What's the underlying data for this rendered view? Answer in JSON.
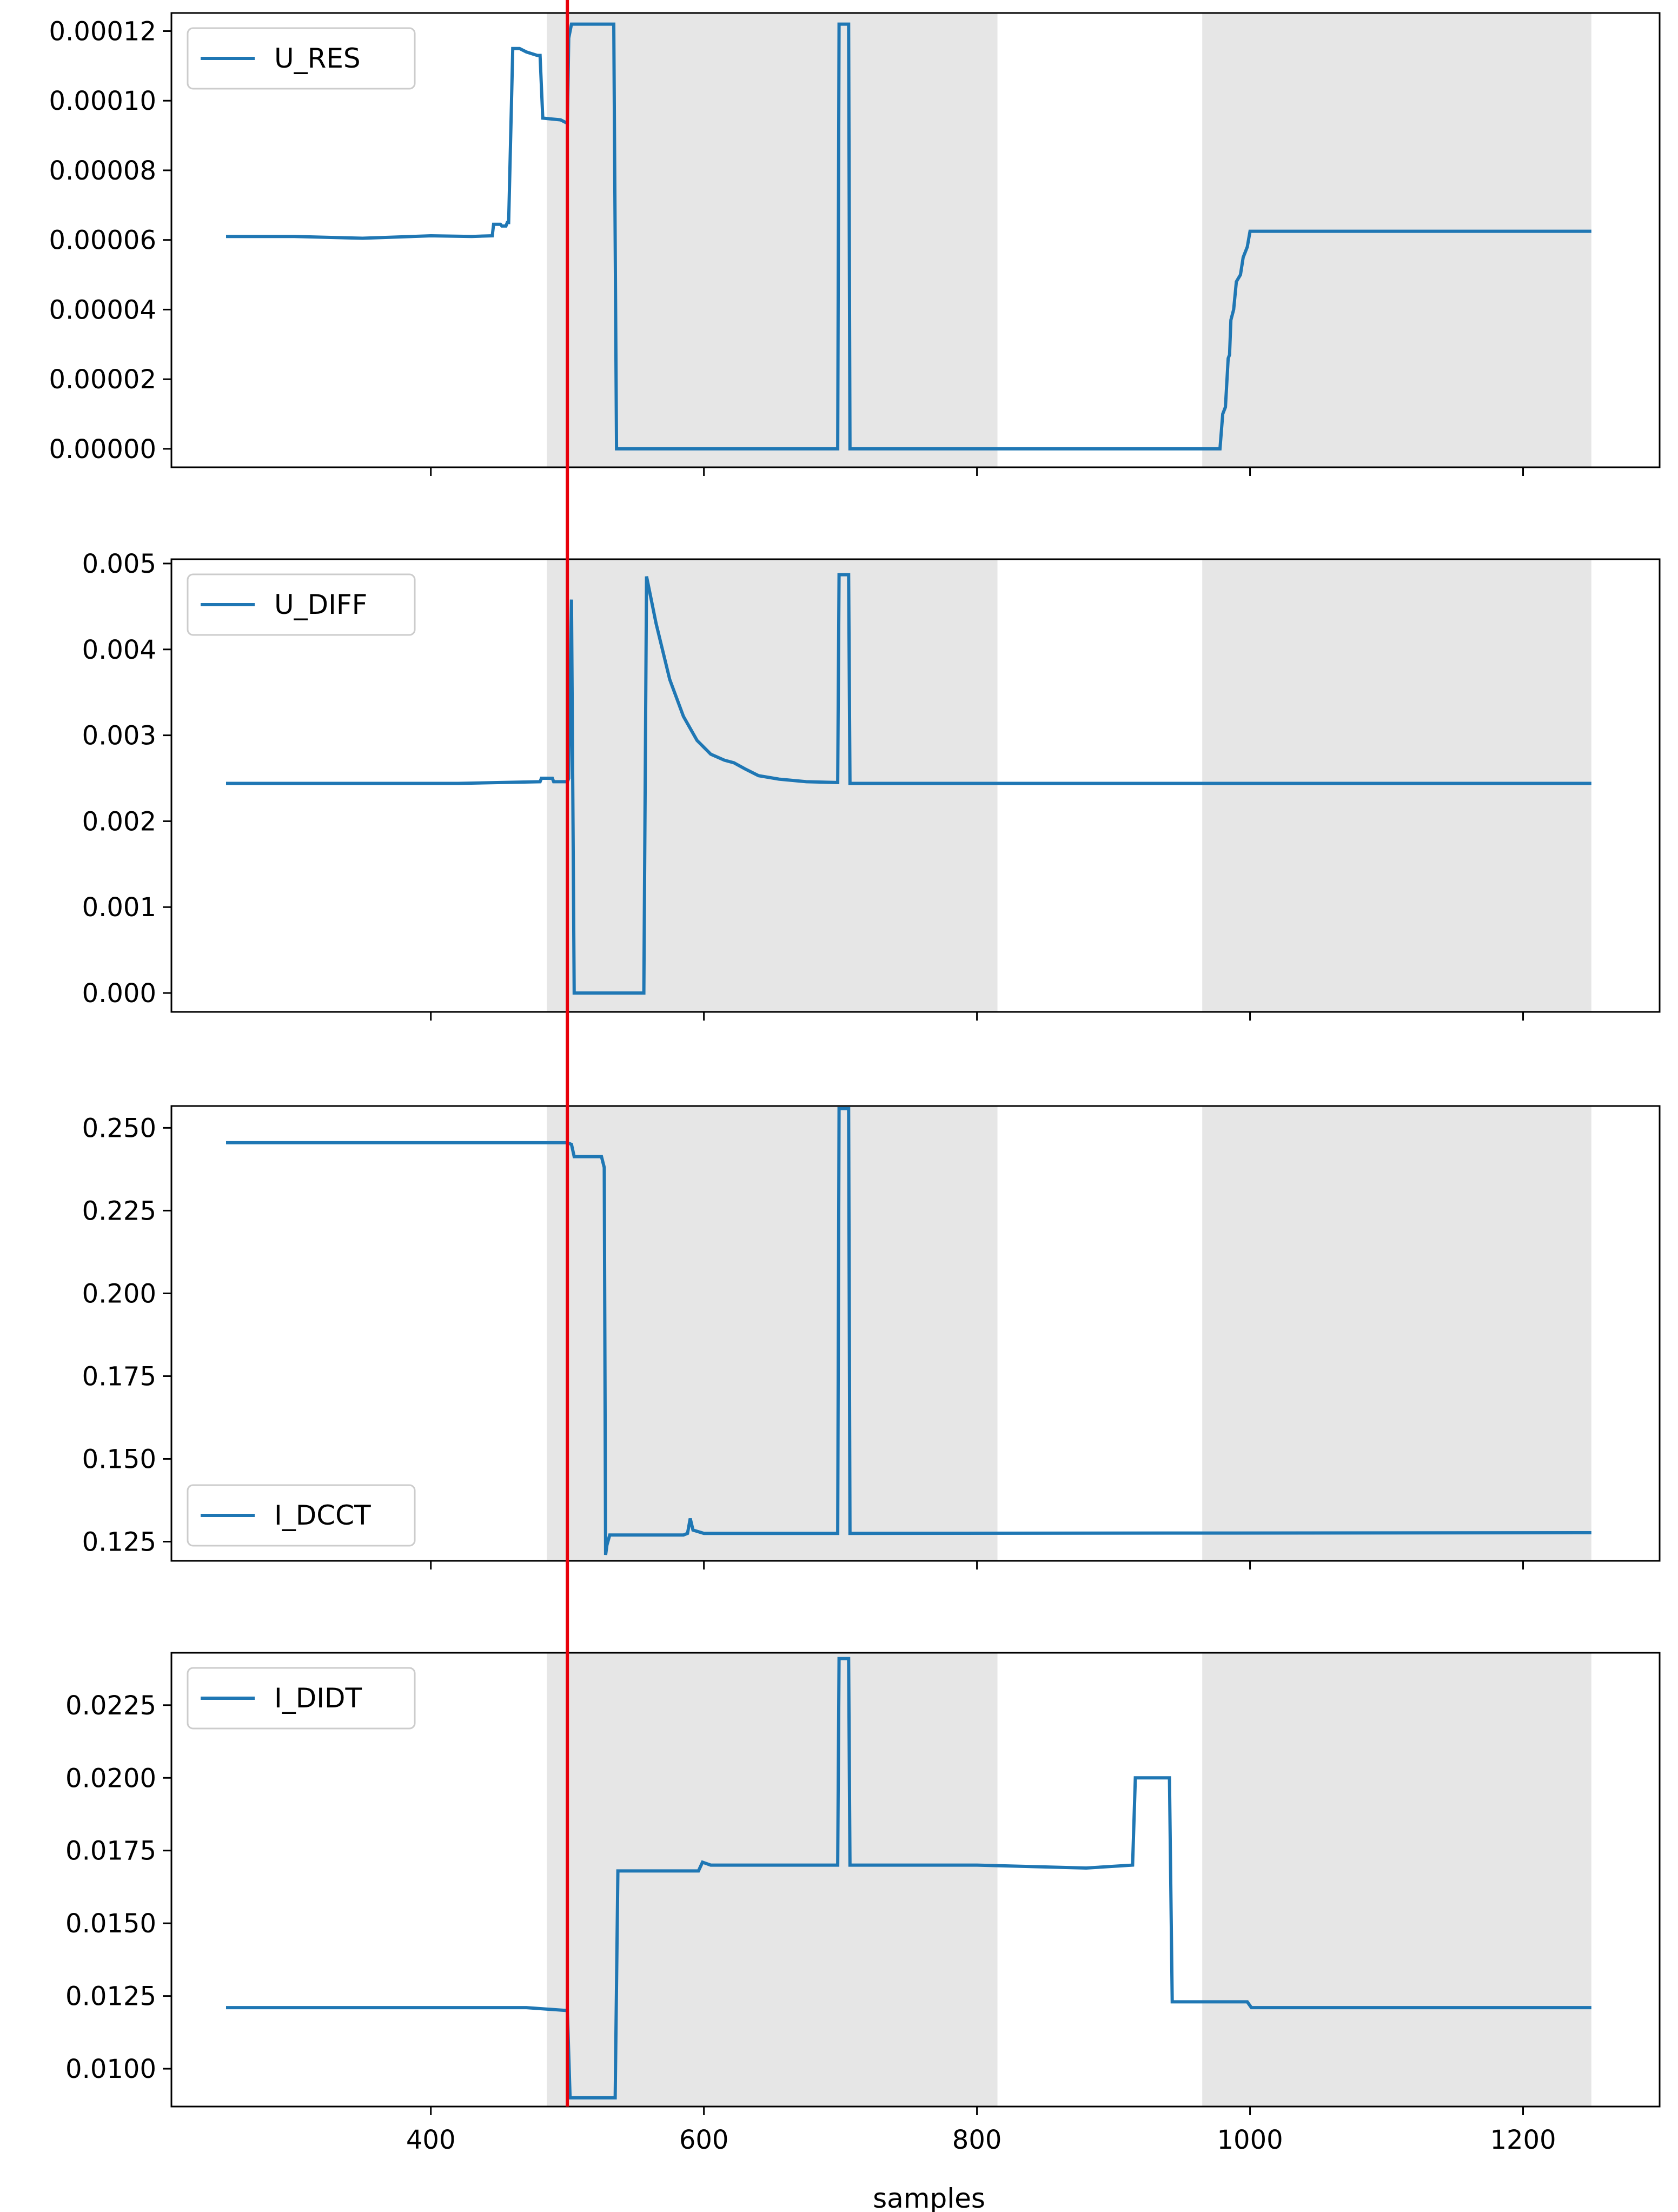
{
  "figure": {
    "xlabel": "samples",
    "shared_x_ticks": [
      400,
      600,
      800,
      1000,
      1200
    ],
    "shaded_regions": [
      [
        485,
        815
      ],
      [
        965,
        1250
      ]
    ],
    "marker_x": 500,
    "colors": {
      "line": "#1f77b4",
      "marker": "#e8000b",
      "shade": "#e6e6e6",
      "axes": "#000000"
    }
  },
  "chart_data": [
    {
      "type": "line",
      "xlim": [
        210,
        1300
      ],
      "ylim": [
        -5.3e-06,
        0.0001252
      ],
      "y_ticks": [
        "0.00000",
        "0.00002",
        "0.00004",
        "0.00006",
        "0.00008",
        "0.00010",
        "0.00012"
      ],
      "y_tick_values": [
        0,
        2e-05,
        4e-05,
        6e-05,
        8e-05,
        0.0001,
        0.00012
      ],
      "legend_loc": "upper left",
      "series": [
        {
          "name": "U_RES",
          "points": [
            [
              250,
              6.1e-05
            ],
            [
              300,
              6.1e-05
            ],
            [
              350,
              6.05e-05
            ],
            [
              400,
              6.12e-05
            ],
            [
              430,
              6.1e-05
            ],
            [
              445,
              6.12e-05
            ],
            [
              446,
              6.45e-05
            ],
            [
              451,
              6.45e-05
            ],
            [
              452,
              6.4e-05
            ],
            [
              455,
              6.4e-05
            ],
            [
              456,
              6.5e-05
            ],
            [
              457,
              6.5e-05
            ],
            [
              460,
              0.000115
            ],
            [
              465,
              0.000115
            ],
            [
              470,
              0.000114
            ],
            [
              478,
              0.000113
            ],
            [
              480,
              0.000113
            ],
            [
              482,
              9.5e-05
            ],
            [
              495,
              9.45e-05
            ],
            [
              500,
              9.35e-05
            ],
            [
              501,
              0.000118
            ],
            [
              503,
              0.000122
            ],
            [
              521,
              0.000122
            ],
            [
              534,
              0.000122
            ],
            [
              536,
              0.0
            ],
            [
              698,
              0.0
            ],
            [
              699,
              0.000122
            ],
            [
              706,
              0.000122
            ],
            [
              707,
              0.0
            ],
            [
              978,
              0.0
            ],
            [
              980,
              1e-05
            ],
            [
              982,
              1.2e-05
            ],
            [
              984,
              2.6e-05
            ],
            [
              985,
              2.7e-05
            ],
            [
              986,
              3.7e-05
            ],
            [
              988,
              4e-05
            ],
            [
              990,
              4.8e-05
            ],
            [
              993,
              5e-05
            ],
            [
              995,
              5.5e-05
            ],
            [
              998,
              5.8e-05
            ],
            [
              1000,
              6.25e-05
            ],
            [
              1250,
              6.25e-05
            ]
          ]
        }
      ]
    },
    {
      "type": "line",
      "xlim": [
        210,
        1300
      ],
      "ylim": [
        -0.00022,
        0.00505
      ],
      "y_ticks": [
        "0.000",
        "0.001",
        "0.002",
        "0.003",
        "0.004",
        "0.005"
      ],
      "y_tick_values": [
        0,
        0.001,
        0.002,
        0.003,
        0.004,
        0.005
      ],
      "legend_loc": "upper left",
      "series": [
        {
          "name": "U_DIFF",
          "points": [
            [
              250,
              0.00244
            ],
            [
              420,
              0.00244
            ],
            [
              480,
              0.00246
            ],
            [
              481,
              0.0025
            ],
            [
              489,
              0.0025
            ],
            [
              490,
              0.00246
            ],
            [
              500,
              0.00246
            ],
            [
              501,
              0.0025
            ],
            [
              503,
              0.00458
            ],
            [
              505,
              0.0
            ],
            [
              556,
              0.0
            ],
            [
              558,
              0.00485
            ],
            [
              565,
              0.0043
            ],
            [
              575,
              0.00365
            ],
            [
              585,
              0.00322
            ],
            [
              595,
              0.00294
            ],
            [
              605,
              0.00278
            ],
            [
              615,
              0.00271
            ],
            [
              622,
              0.00268
            ],
            [
              630,
              0.00261
            ],
            [
              640,
              0.00253
            ],
            [
              655,
              0.00249
            ],
            [
              675,
              0.00246
            ],
            [
              698,
              0.00245
            ],
            [
              699,
              0.00487
            ],
            [
              706,
              0.00487
            ],
            [
              707,
              0.00244
            ],
            [
              1250,
              0.00244
            ]
          ]
        }
      ]
    },
    {
      "type": "line",
      "xlim": [
        210,
        1300
      ],
      "ylim": [
        0.1192,
        0.2566
      ],
      "y_ticks": [
        "0.125",
        "0.150",
        "0.175",
        "0.200",
        "0.225",
        "0.250"
      ],
      "y_tick_values": [
        0.125,
        0.15,
        0.175,
        0.2,
        0.225,
        0.25
      ],
      "legend_loc": "lower left",
      "series": [
        {
          "name": "I_DCCT",
          "points": [
            [
              250,
              0.2455
            ],
            [
              500,
              0.2455
            ],
            [
              503,
              0.245
            ],
            [
              505,
              0.2413
            ],
            [
              525,
              0.2413
            ],
            [
              527,
              0.238
            ],
            [
              528,
              0.121
            ],
            [
              529,
              0.124
            ],
            [
              531,
              0.127
            ],
            [
              585,
              0.127
            ],
            [
              588,
              0.1275
            ],
            [
              590,
              0.132
            ],
            [
              592,
              0.1285
            ],
            [
              600,
              0.1275
            ],
            [
              698,
              0.1275
            ],
            [
              699,
              0.2558
            ],
            [
              706,
              0.2558
            ],
            [
              707,
              0.1275
            ],
            [
              1250,
              0.1277
            ]
          ]
        }
      ]
    },
    {
      "type": "line",
      "xlim": [
        210,
        1300
      ],
      "ylim": [
        0.0087,
        0.0243
      ],
      "y_ticks": [
        "0.0100",
        "0.0125",
        "0.0150",
        "0.0175",
        "0.0200",
        "0.0225"
      ],
      "y_tick_values": [
        0.01,
        0.0125,
        0.015,
        0.0175,
        0.02,
        0.0225
      ],
      "legend_loc": "upper left",
      "series": [
        {
          "name": "I_DIDT",
          "points": [
            [
              250,
              0.0121
            ],
            [
              420,
              0.0121
            ],
            [
              440,
              0.0121
            ],
            [
              470,
              0.0121
            ],
            [
              500,
              0.012
            ],
            [
              502,
              0.009
            ],
            [
              535,
              0.009
            ],
            [
              537,
              0.0168
            ],
            [
              596,
              0.0168
            ],
            [
              599,
              0.0171
            ],
            [
              605,
              0.017
            ],
            [
              698,
              0.017
            ],
            [
              699,
              0.0241
            ],
            [
              706,
              0.0241
            ],
            [
              707,
              0.017
            ],
            [
              800,
              0.017
            ],
            [
              880,
              0.0169
            ],
            [
              914,
              0.017
            ],
            [
              916,
              0.02
            ],
            [
              941,
              0.02
            ],
            [
              943,
              0.0123
            ],
            [
              998,
              0.0123
            ],
            [
              1001,
              0.0121
            ],
            [
              1250,
              0.0121
            ]
          ]
        }
      ]
    }
  ]
}
